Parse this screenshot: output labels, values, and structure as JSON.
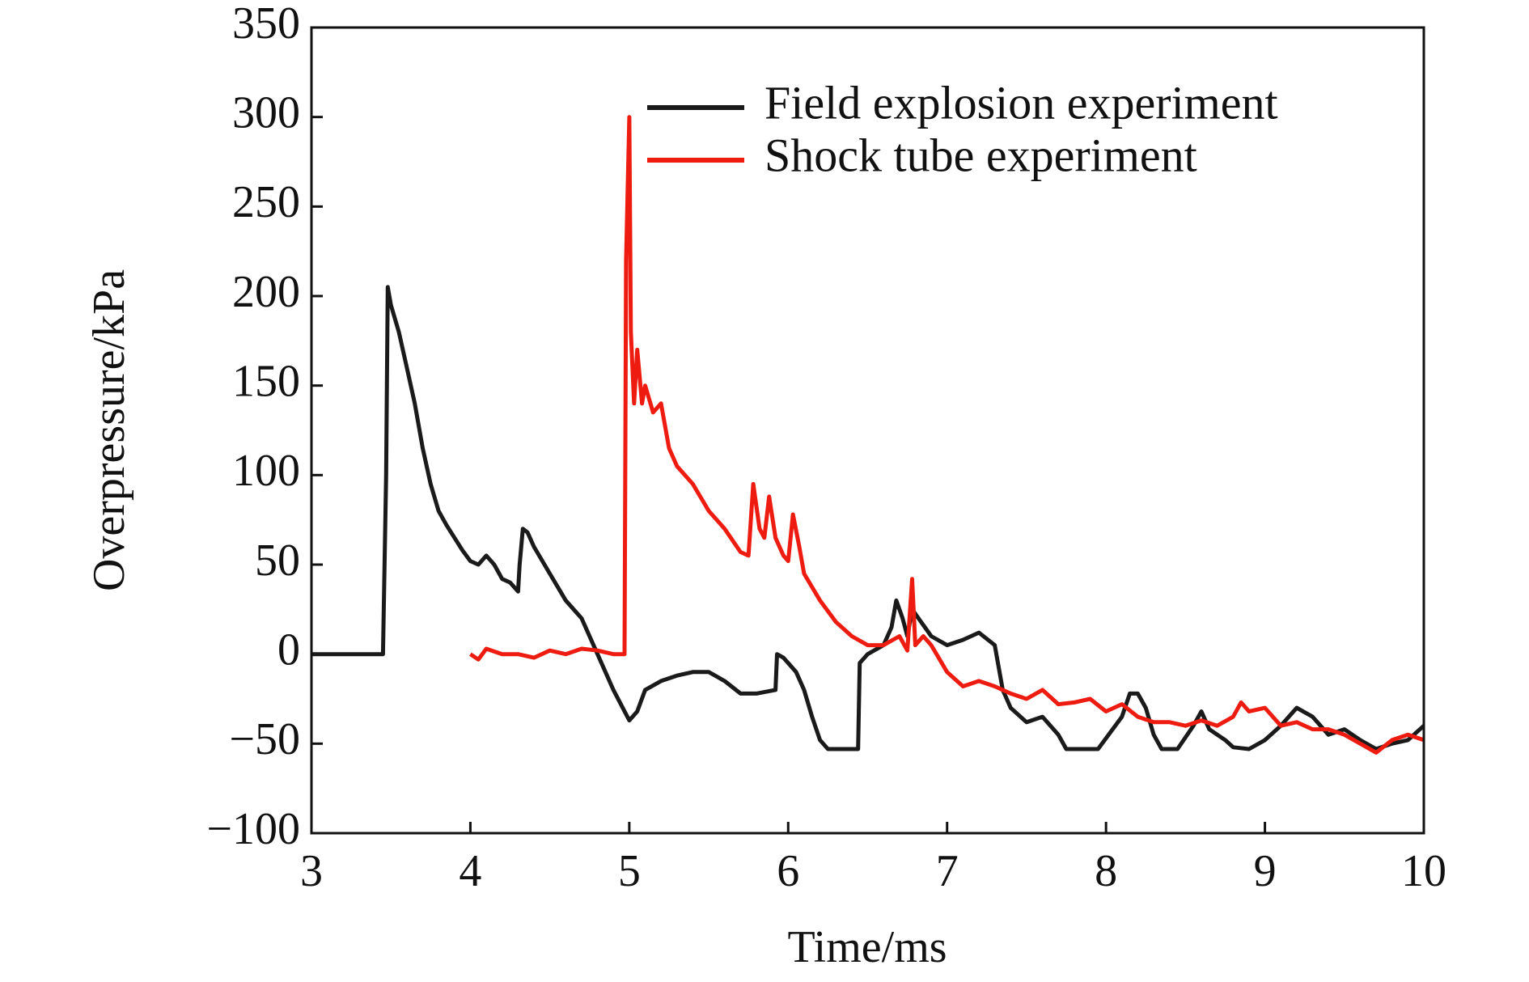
{
  "chart_data": {
    "type": "line",
    "xlabel": "Time/ms",
    "ylabel": "Overpressure/kPa",
    "xlim": [
      3,
      10
    ],
    "xticks": [
      3,
      4,
      5,
      6,
      7,
      8,
      9,
      10
    ],
    "ylim": [
      -100,
      350
    ],
    "yticks": [
      {
        "value": -100,
        "label": "−100"
      },
      {
        "value": -50,
        "label": "−50"
      },
      0,
      50,
      100,
      150,
      200,
      250,
      300,
      350
    ],
    "legend": "upper right",
    "series": [
      {
        "name": "Field explosion experiment",
        "color": "#1a1a1a",
        "x": [
          3.0,
          3.4,
          3.45,
          3.47,
          3.48,
          3.5,
          3.55,
          3.6,
          3.65,
          3.7,
          3.75,
          3.8,
          3.85,
          3.9,
          3.95,
          4.0,
          4.05,
          4.1,
          4.15,
          4.2,
          4.25,
          4.3,
          4.31,
          4.33,
          4.36,
          4.4,
          4.5,
          4.6,
          4.7,
          4.8,
          4.9,
          5.0,
          5.05,
          5.1,
          5.2,
          5.3,
          5.4,
          5.5,
          5.6,
          5.7,
          5.8,
          5.92,
          5.93,
          5.97,
          6.0,
          6.05,
          6.1,
          6.15,
          6.2,
          6.25,
          6.44,
          6.45,
          6.5,
          6.6,
          6.65,
          6.68,
          6.72,
          6.75,
          6.78,
          6.82,
          6.9,
          7.0,
          7.1,
          7.2,
          7.3,
          7.35,
          7.4,
          7.5,
          7.6,
          7.7,
          7.75,
          7.95,
          8.1,
          8.15,
          8.2,
          8.25,
          8.3,
          8.35,
          8.45,
          8.55,
          8.6,
          8.65,
          8.75,
          8.8,
          8.9,
          9.0,
          9.1,
          9.2,
          9.3,
          9.4,
          9.5,
          9.6,
          9.7,
          9.8,
          9.9,
          10.0
        ],
        "values": [
          0,
          0,
          0,
          100,
          205,
          195,
          180,
          160,
          140,
          115,
          95,
          80,
          72,
          65,
          58,
          52,
          50,
          55,
          50,
          42,
          40,
          35,
          50,
          70,
          68,
          60,
          45,
          30,
          20,
          0,
          -20,
          -37,
          -32,
          -20,
          -15,
          -12,
          -10,
          -10,
          -15,
          -22,
          -22,
          -20,
          0,
          -2,
          -5,
          -10,
          -20,
          -35,
          -48,
          -53,
          -53,
          -5,
          0,
          5,
          15,
          30,
          20,
          10,
          25,
          20,
          10,
          5,
          8,
          12,
          5,
          -20,
          -30,
          -38,
          -35,
          -45,
          -53,
          -53,
          -35,
          -22,
          -22,
          -30,
          -45,
          -53,
          -53,
          -40,
          -32,
          -42,
          -48,
          -52,
          -53,
          -48,
          -40,
          -30,
          -35,
          -45,
          -42,
          -48,
          -53,
          -50,
          -48,
          -40
        ]
      },
      {
        "name": "Shock tube experiment",
        "color": "#ee1c10",
        "x": [
          4.0,
          4.05,
          4.1,
          4.2,
          4.3,
          4.4,
          4.5,
          4.6,
          4.7,
          4.8,
          4.9,
          4.97,
          4.98,
          5.0,
          5.01,
          5.03,
          5.05,
          5.08,
          5.1,
          5.15,
          5.2,
          5.25,
          5.3,
          5.4,
          5.5,
          5.6,
          5.7,
          5.75,
          5.78,
          5.82,
          5.85,
          5.88,
          5.92,
          5.97,
          6.0,
          6.03,
          6.07,
          6.1,
          6.2,
          6.3,
          6.4,
          6.5,
          6.6,
          6.7,
          6.75,
          6.78,
          6.8,
          6.85,
          6.9,
          7.0,
          7.1,
          7.2,
          7.3,
          7.4,
          7.5,
          7.6,
          7.7,
          7.8,
          7.9,
          8.0,
          8.1,
          8.2,
          8.3,
          8.4,
          8.5,
          8.6,
          8.7,
          8.8,
          8.85,
          8.9,
          9.0,
          9.1,
          9.2,
          9.3,
          9.4,
          9.5,
          9.6,
          9.7,
          9.8,
          9.9,
          10.0
        ],
        "values": [
          0,
          -3,
          3,
          0,
          0,
          -2,
          2,
          0,
          3,
          2,
          0,
          0,
          220,
          300,
          180,
          140,
          170,
          140,
          150,
          135,
          140,
          115,
          105,
          95,
          80,
          70,
          57,
          55,
          95,
          70,
          65,
          88,
          65,
          55,
          52,
          78,
          60,
          45,
          30,
          18,
          10,
          5,
          5,
          10,
          2,
          42,
          5,
          10,
          5,
          -10,
          -18,
          -15,
          -18,
          -22,
          -25,
          -20,
          -28,
          -27,
          -25,
          -32,
          -28,
          -35,
          -38,
          -38,
          -40,
          -37,
          -40,
          -35,
          -27,
          -32,
          -30,
          -40,
          -38,
          -42,
          -42,
          -45,
          -50,
          -55,
          -48,
          -45,
          -48
        ]
      }
    ]
  }
}
